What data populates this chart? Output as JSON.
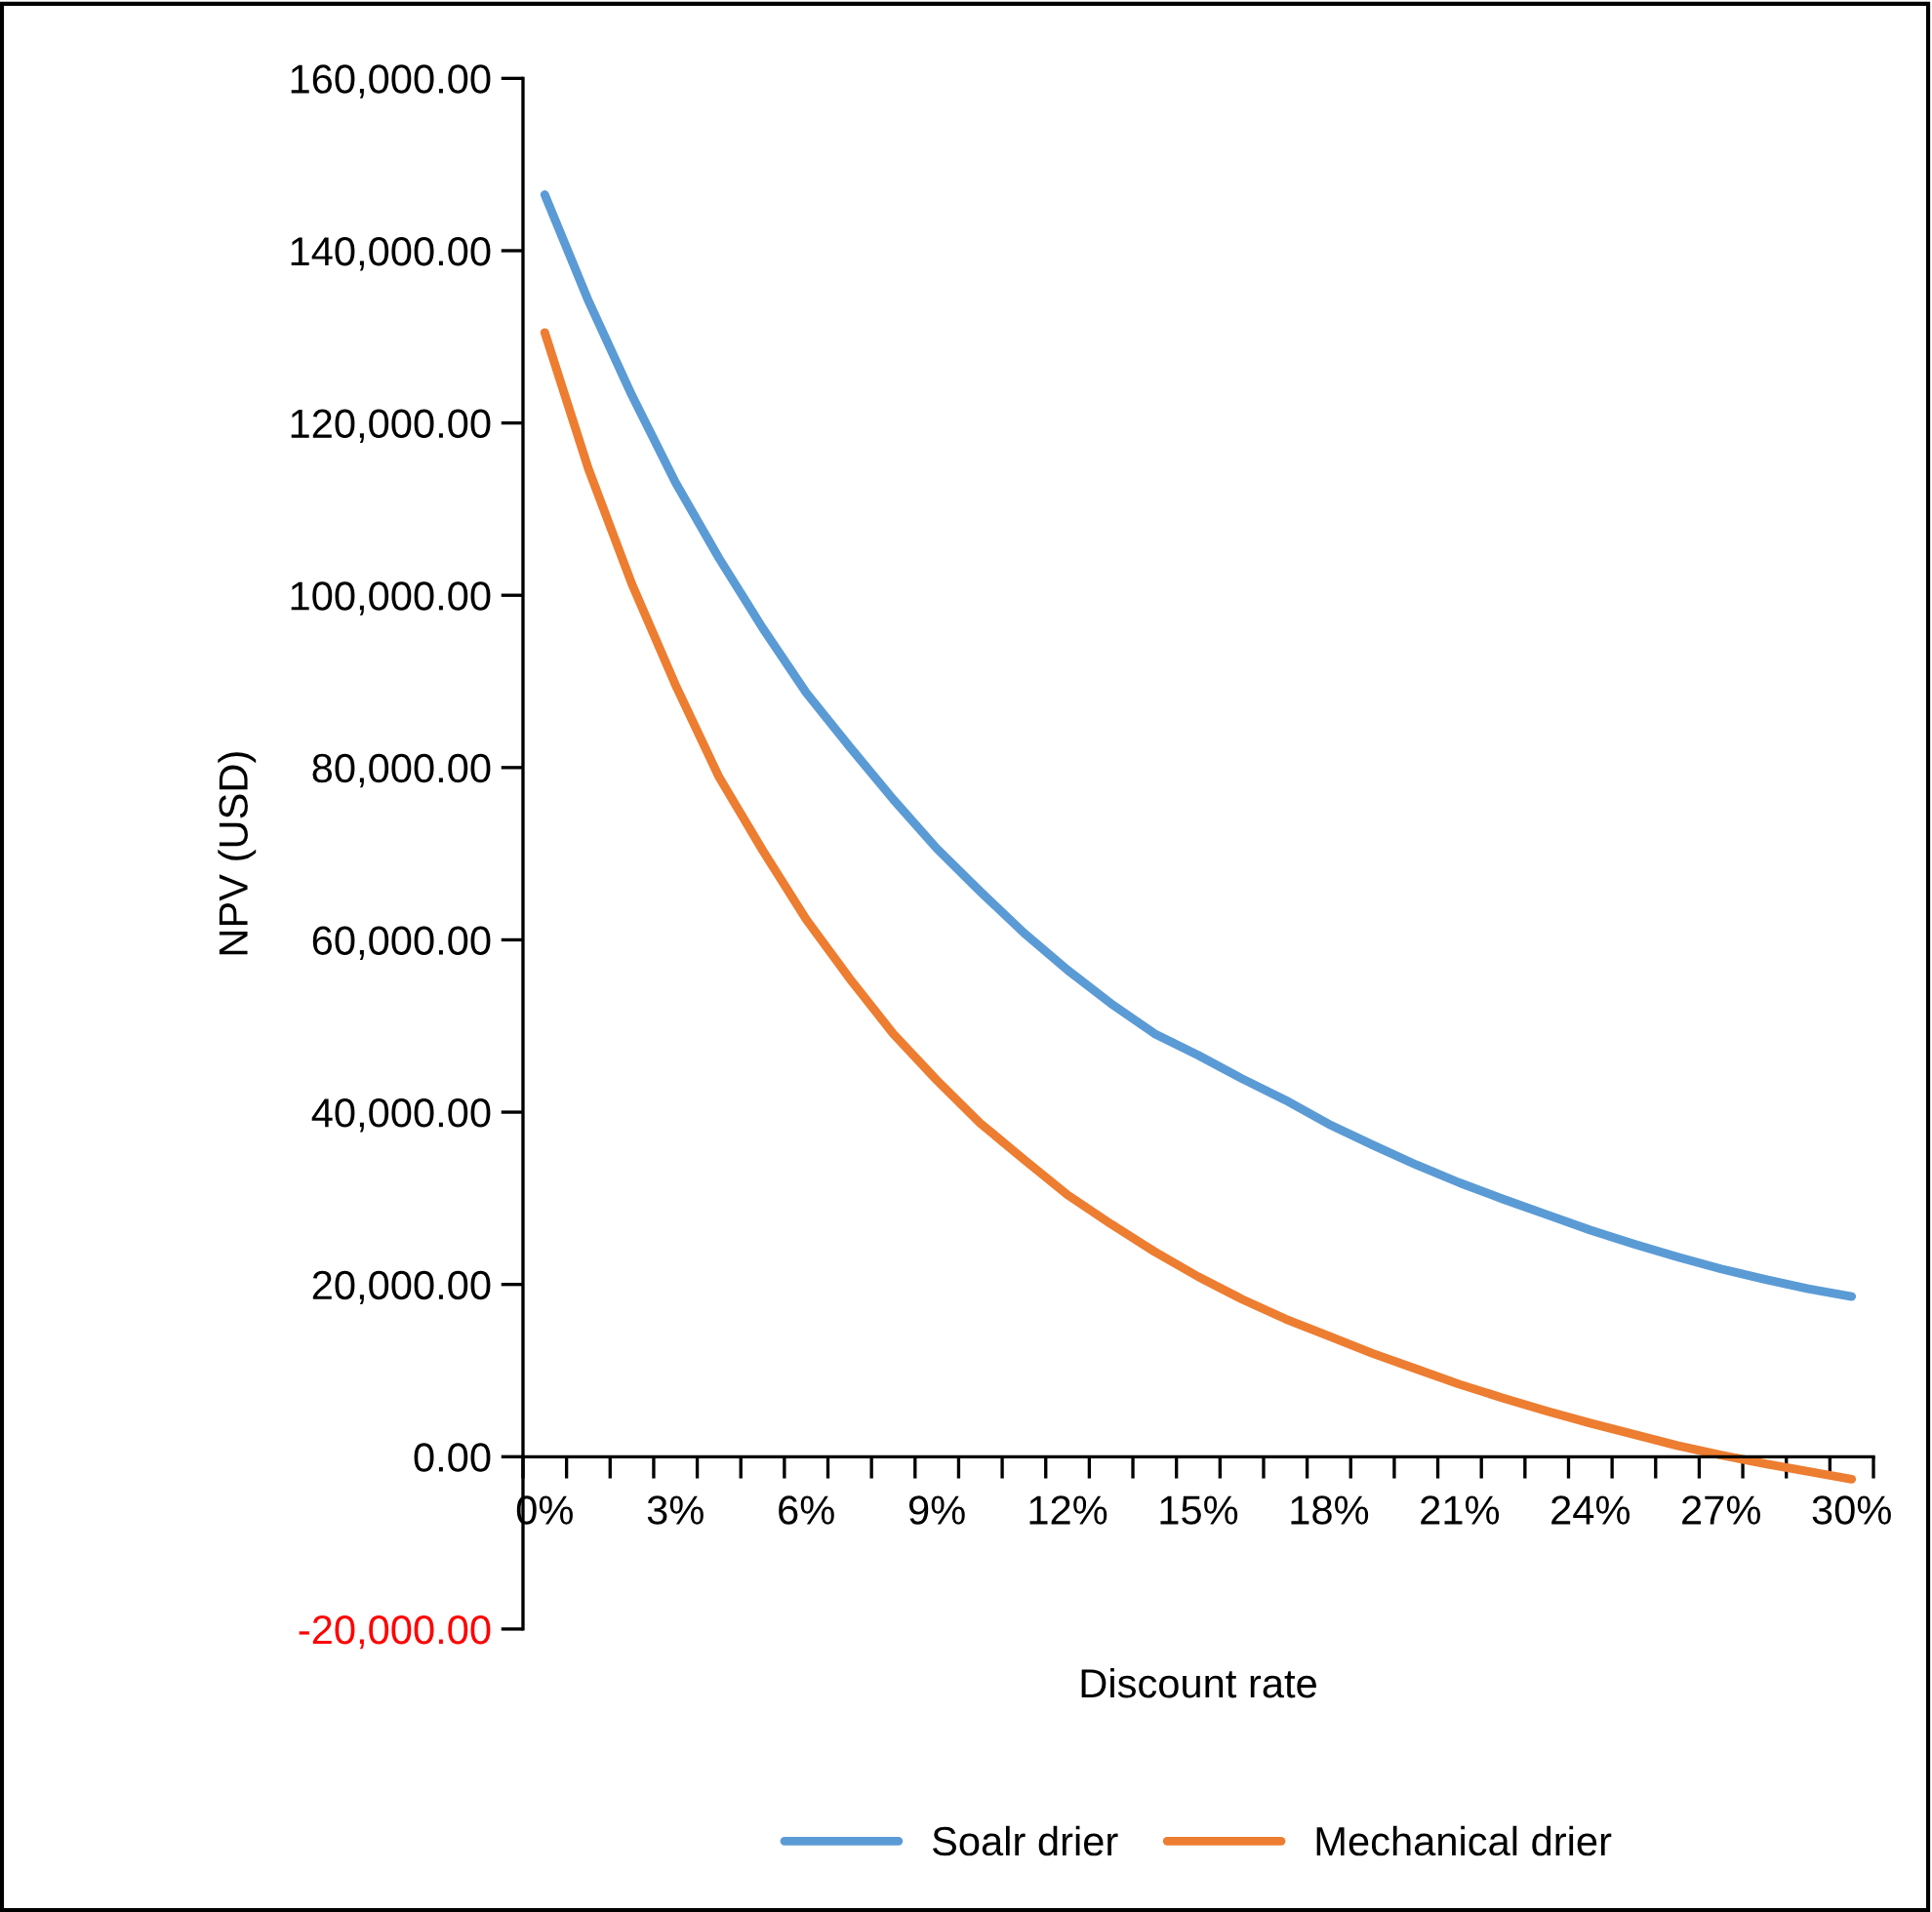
{
  "chart_data": {
    "type": "line",
    "xlabel": "Discount rate",
    "ylabel": "NPV (USD)",
    "categories": [
      "0%",
      null,
      null,
      "3%",
      null,
      null,
      "6%",
      null,
      null,
      "9%",
      null,
      null,
      "12%",
      null,
      null,
      "15%",
      null,
      null,
      "18%",
      null,
      null,
      "21%",
      null,
      null,
      "24%",
      null,
      null,
      "27%",
      null,
      null,
      "30%"
    ],
    "series": [
      {
        "name": "Soalr drier",
        "color": "#5b9bd5",
        "values": [
          146500,
          134200,
          123200,
          113100,
          104300,
          96200,
          88700,
          82400,
          76300,
          70600,
          65600,
          60800,
          56500,
          52600,
          49100,
          46600,
          43900,
          41400,
          38600,
          36200,
          33900,
          31800,
          29900,
          28100,
          26300,
          24700,
          23200,
          21800,
          20600,
          19500,
          18600
        ]
      },
      {
        "name": "Mechanical drier",
        "color": "#ed7d31",
        "values": [
          130500,
          114700,
          101300,
          89600,
          78900,
          70400,
          62400,
          55500,
          49100,
          43700,
          38700,
          34500,
          30400,
          27000,
          23800,
          20900,
          18300,
          16000,
          14000,
          12000,
          10200,
          8400,
          6800,
          5300,
          3900,
          2600,
          1300,
          200,
          -800,
          -1700,
          -2600
        ]
      }
    ],
    "ylim": [
      -20000,
      160000
    ],
    "yticks": [
      {
        "value": -20000,
        "label": "-20,000.00"
      },
      {
        "value": 0,
        "label": "0.00"
      },
      {
        "value": 20000,
        "label": "20,000.00"
      },
      {
        "value": 40000,
        "label": "40,000.00"
      },
      {
        "value": 60000,
        "label": "60,000.00"
      },
      {
        "value": 80000,
        "label": "80,000.00"
      },
      {
        "value": 100000,
        "label": "100,000.00"
      },
      {
        "value": 120000,
        "label": "120,000.00"
      },
      {
        "value": 140000,
        "label": "140,000.00"
      },
      {
        "value": 160000,
        "label": "160,000.00"
      }
    ],
    "grid": false,
    "legend": "bottom",
    "marker": "none",
    "line_style": "solid"
  }
}
